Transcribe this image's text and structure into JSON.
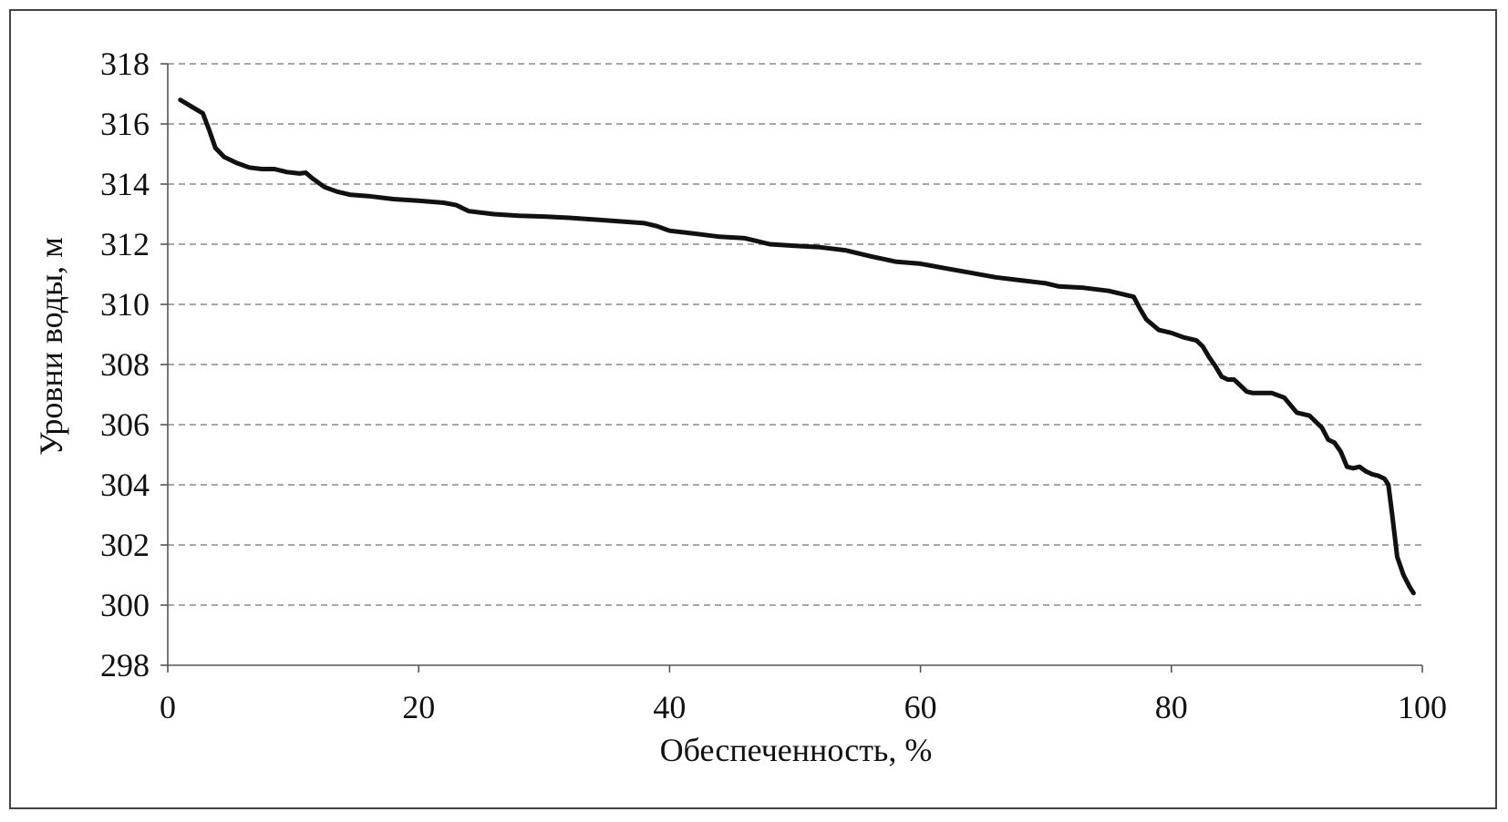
{
  "chart_data": {
    "type": "line",
    "title": "",
    "xlabel": "Обеспеченность, %",
    "ylabel": "Уровни воды, м",
    "xlim": [
      0,
      100
    ],
    "ylim": [
      298,
      318
    ],
    "xticks": [
      "0",
      "20",
      "40",
      "60",
      "80",
      "100"
    ],
    "yticks": [
      "298",
      "300",
      "302",
      "304",
      "306",
      "308",
      "310",
      "312",
      "314",
      "316",
      "318"
    ],
    "grid": true,
    "legend": "none",
    "line_color": "#111111",
    "series": [
      {
        "x": [
          1,
          2,
          2.8,
          3.3,
          3.8,
          4.5,
          5.5,
          6.5,
          7.5,
          8.5,
          9.5,
          10.5,
          11,
          11.5,
          12.5,
          13.5,
          14.5,
          16,
          18,
          20,
          22,
          23,
          24,
          26,
          28,
          30,
          32,
          34,
          36,
          38,
          39,
          40,
          42,
          44,
          46,
          47,
          48,
          50,
          52,
          54,
          56,
          58,
          60,
          62,
          64,
          66,
          68,
          70,
          71,
          73,
          75,
          76,
          77,
          77.5,
          78,
          79,
          80,
          81,
          82,
          82.5,
          83,
          83.5,
          84,
          84.5,
          85,
          85.5,
          86,
          86.5,
          87,
          88,
          89,
          90,
          91,
          92,
          92.5,
          93,
          93.5,
          94,
          94.5,
          95,
          95.5,
          96,
          96.5,
          97,
          97.3,
          97.6,
          98,
          98.5,
          99,
          99.3
        ],
        "y": [
          316.8,
          316.55,
          316.35,
          315.8,
          315.2,
          314.9,
          314.7,
          314.55,
          314.5,
          314.5,
          314.4,
          314.35,
          314.38,
          314.2,
          313.9,
          313.75,
          313.65,
          313.6,
          313.5,
          313.45,
          313.38,
          313.3,
          313.1,
          313.0,
          312.95,
          312.92,
          312.88,
          312.82,
          312.76,
          312.7,
          312.6,
          312.45,
          312.35,
          312.25,
          312.2,
          312.1,
          312.0,
          311.95,
          311.9,
          311.8,
          311.6,
          311.42,
          311.35,
          311.2,
          311.05,
          310.9,
          310.8,
          310.7,
          310.6,
          310.55,
          310.45,
          310.35,
          310.25,
          309.85,
          309.5,
          309.15,
          309.05,
          308.9,
          308.8,
          308.6,
          308.25,
          307.95,
          307.6,
          307.5,
          307.5,
          307.3,
          307.1,
          307.05,
          307.05,
          307.05,
          306.9,
          306.4,
          306.3,
          305.9,
          305.5,
          305.4,
          305.1,
          304.6,
          304.55,
          304.6,
          304.45,
          304.35,
          304.3,
          304.2,
          304.0,
          303.0,
          301.6,
          301.0,
          300.6,
          300.4
        ]
      }
    ]
  }
}
